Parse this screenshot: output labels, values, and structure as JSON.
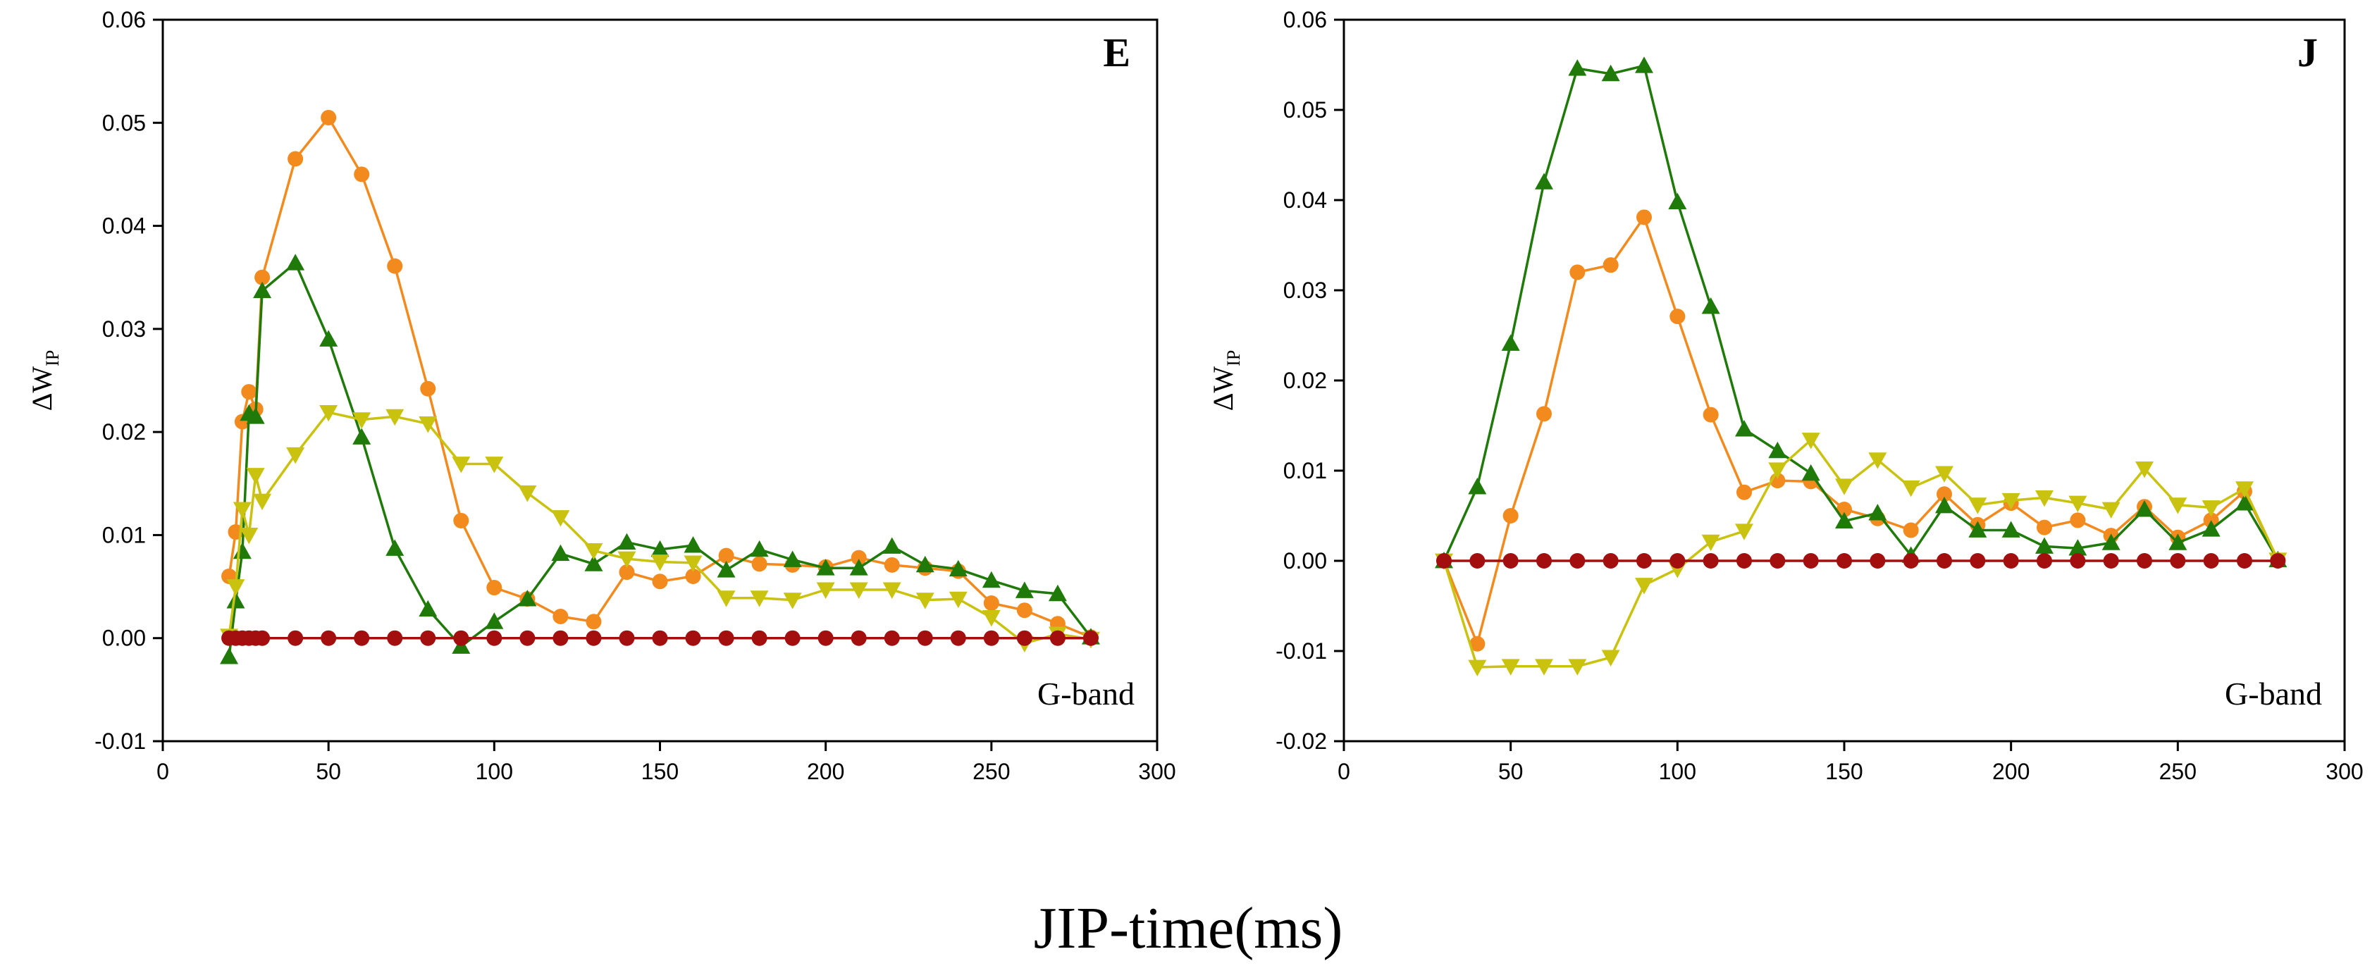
{
  "colors": {
    "control": "#a30f0f",
    "orange": "#f28a1e",
    "green": "#1f7a0a",
    "yellow": "#c9c20f"
  },
  "shared_xlabel": "JIP-time(ms)",
  "chart_data": [
    {
      "type": "line",
      "panel": "E",
      "annotation": "G-band",
      "ylabel_main": "ΔW",
      "ylabel_sub": "IP",
      "xlim": [
        0,
        300
      ],
      "ylim": [
        -0.01,
        0.06
      ],
      "xticks": [
        0,
        50,
        100,
        150,
        200,
        250,
        300
      ],
      "yticks": [
        -0.01,
        0.0,
        0.01,
        0.02,
        0.03,
        0.04,
        0.05,
        0.06
      ],
      "ytick_labels": [
        "-0.01",
        "0.00",
        "0.01",
        "0.02",
        "0.03",
        "0.04",
        "0.05",
        "0.06"
      ],
      "series": [
        {
          "color_key": "control",
          "marker": "circle",
          "x": [
            20,
            22,
            24,
            26,
            28,
            30,
            40,
            50,
            60,
            70,
            80,
            90,
            100,
            110,
            120,
            130,
            140,
            150,
            160,
            170,
            180,
            190,
            200,
            210,
            220,
            230,
            240,
            250,
            260,
            270,
            280
          ],
          "y": [
            0,
            0,
            0,
            0,
            0,
            0,
            0,
            0,
            0,
            0,
            0,
            0,
            0,
            0,
            0,
            0,
            0,
            0,
            0,
            0,
            0,
            0,
            0,
            0,
            0,
            0,
            0,
            0,
            0,
            0,
            0
          ]
        },
        {
          "color_key": "orange",
          "marker": "circle",
          "x": [
            20,
            22,
            24,
            26,
            28,
            30,
            40,
            50,
            60,
            70,
            80,
            90,
            100,
            110,
            120,
            130,
            140,
            150,
            160,
            170,
            180,
            190,
            200,
            210,
            220,
            230,
            240,
            250,
            260,
            270,
            280
          ],
          "y": [
            0.006,
            0.0103,
            0.021,
            0.0239,
            0.0222,
            0.035,
            0.0465,
            0.0505,
            0.045,
            0.0361,
            0.0242,
            0.0114,
            0.0049,
            0.0038,
            0.0021,
            0.0016,
            0.0064,
            0.0055,
            0.006,
            0.008,
            0.0072,
            0.0071,
            0.0069,
            0.0078,
            0.0071,
            0.0068,
            0.0065,
            0.0034,
            0.0027,
            0.0014,
            0.0001
          ]
        },
        {
          "color_key": "green",
          "marker": "triangle-up",
          "x": [
            20,
            22,
            24,
            26,
            28,
            30,
            40,
            50,
            60,
            70,
            80,
            90,
            100,
            110,
            120,
            130,
            140,
            150,
            160,
            170,
            180,
            190,
            200,
            210,
            220,
            230,
            240,
            250,
            260,
            270,
            280
          ],
          "y": [
            -0.0018,
            0.0036,
            0.0084,
            0.0218,
            0.0215,
            0.0337,
            0.0364,
            0.029,
            0.0195,
            0.0087,
            0.0028,
            -0.0008,
            0.0016,
            0.0038,
            0.0082,
            0.0072,
            0.0093,
            0.0086,
            0.009,
            0.0066,
            0.0086,
            0.0076,
            0.0068,
            0.0068,
            0.0089,
            0.0071,
            0.0067,
            0.0056,
            0.0046,
            0.0043,
            0.0001
          ]
        },
        {
          "color_key": "yellow",
          "marker": "triangle-down",
          "x": [
            20,
            22,
            24,
            26,
            28,
            30,
            40,
            50,
            60,
            70,
            80,
            90,
            100,
            110,
            120,
            130,
            140,
            150,
            160,
            170,
            180,
            190,
            200,
            210,
            220,
            230,
            240,
            250,
            260,
            270,
            280
          ],
          "y": [
            0.0002,
            0.005,
            0.0125,
            0.01,
            0.0158,
            0.0133,
            0.0178,
            0.0219,
            0.0212,
            0.0215,
            0.0208,
            0.0169,
            0.0169,
            0.0141,
            0.0117,
            0.0085,
            0.0077,
            0.0074,
            0.0073,
            0.0039,
            0.0039,
            0.0037,
            0.0047,
            0.0047,
            0.0047,
            0.0037,
            0.0038,
            0.002,
            -0.0005,
            0.0004,
            -0.0001
          ]
        }
      ]
    },
    {
      "type": "line",
      "panel": "J",
      "annotation": "G-band",
      "ylabel_main": "ΔW",
      "ylabel_sub": "IP",
      "xlim": [
        0,
        300
      ],
      "ylim": [
        -0.02,
        0.06
      ],
      "xticks": [
        0,
        50,
        100,
        150,
        200,
        250,
        300
      ],
      "yticks": [
        -0.02,
        -0.01,
        0.0,
        0.01,
        0.02,
        0.03,
        0.04,
        0.05,
        0.06
      ],
      "ytick_labels": [
        "-0.02",
        "-0.01",
        "0.00",
        "0.01",
        "0.02",
        "0.03",
        "0.04",
        "0.05",
        "0.06"
      ],
      "series": [
        {
          "color_key": "control",
          "marker": "circle",
          "x": [
            30,
            40,
            50,
            60,
            70,
            80,
            90,
            100,
            110,
            120,
            130,
            140,
            150,
            160,
            170,
            180,
            190,
            200,
            210,
            220,
            230,
            240,
            250,
            260,
            270,
            280
          ],
          "y": [
            0,
            0,
            0,
            0,
            0,
            0,
            0,
            0,
            0,
            0,
            0,
            0,
            0,
            0,
            0,
            0,
            0,
            0,
            0,
            0,
            0,
            0,
            0,
            0,
            0,
            0
          ]
        },
        {
          "color_key": "orange",
          "marker": "circle",
          "x": [
            30,
            40,
            50,
            60,
            70,
            80,
            90,
            100,
            110,
            120,
            130,
            140,
            150,
            160,
            170,
            180,
            190,
            200,
            210,
            220,
            230,
            240,
            250,
            260,
            270,
            280
          ],
          "y": [
            0,
            -0.0092,
            0.005,
            0.0163,
            0.032,
            0.0328,
            0.0381,
            0.0271,
            0.0162,
            0.0076,
            0.0089,
            0.0088,
            0.0057,
            0.0047,
            0.0034,
            0.0074,
            0.004,
            0.0064,
            0.0037,
            0.0045,
            0.0028,
            0.006,
            0.0026,
            0.0045,
            0.0077,
            0.0001
          ]
        },
        {
          "color_key": "green",
          "marker": "triangle-up",
          "x": [
            30,
            40,
            50,
            60,
            70,
            80,
            90,
            100,
            110,
            120,
            130,
            140,
            150,
            160,
            170,
            180,
            190,
            200,
            210,
            220,
            230,
            240,
            250,
            260,
            270,
            280
          ],
          "y": [
            0,
            0.0082,
            0.0241,
            0.042,
            0.0546,
            0.054,
            0.0549,
            0.0398,
            0.0282,
            0.0146,
            0.0122,
            0.0097,
            0.0044,
            0.0053,
            0.0006,
            0.0061,
            0.0034,
            0.0034,
            0.0016,
            0.0014,
            0.002,
            0.0057,
            0.002,
            0.0035,
            0.0064,
            0.0001
          ]
        },
        {
          "color_key": "yellow",
          "marker": "triangle-down",
          "x": [
            30,
            40,
            50,
            60,
            70,
            80,
            90,
            100,
            110,
            120,
            130,
            140,
            150,
            160,
            170,
            180,
            190,
            200,
            210,
            220,
            230,
            240,
            250,
            260,
            270,
            280
          ],
          "y": [
            0,
            -0.0118,
            -0.0117,
            -0.0117,
            -0.0117,
            -0.0107,
            -0.0027,
            -0.0009,
            0.0021,
            0.0033,
            0.0101,
            0.0134,
            0.0083,
            0.0112,
            0.0081,
            0.0097,
            0.0062,
            0.0067,
            0.007,
            0.0064,
            0.0057,
            0.0102,
            0.0062,
            0.0059,
            0.008,
            0.0001
          ]
        }
      ]
    }
  ]
}
